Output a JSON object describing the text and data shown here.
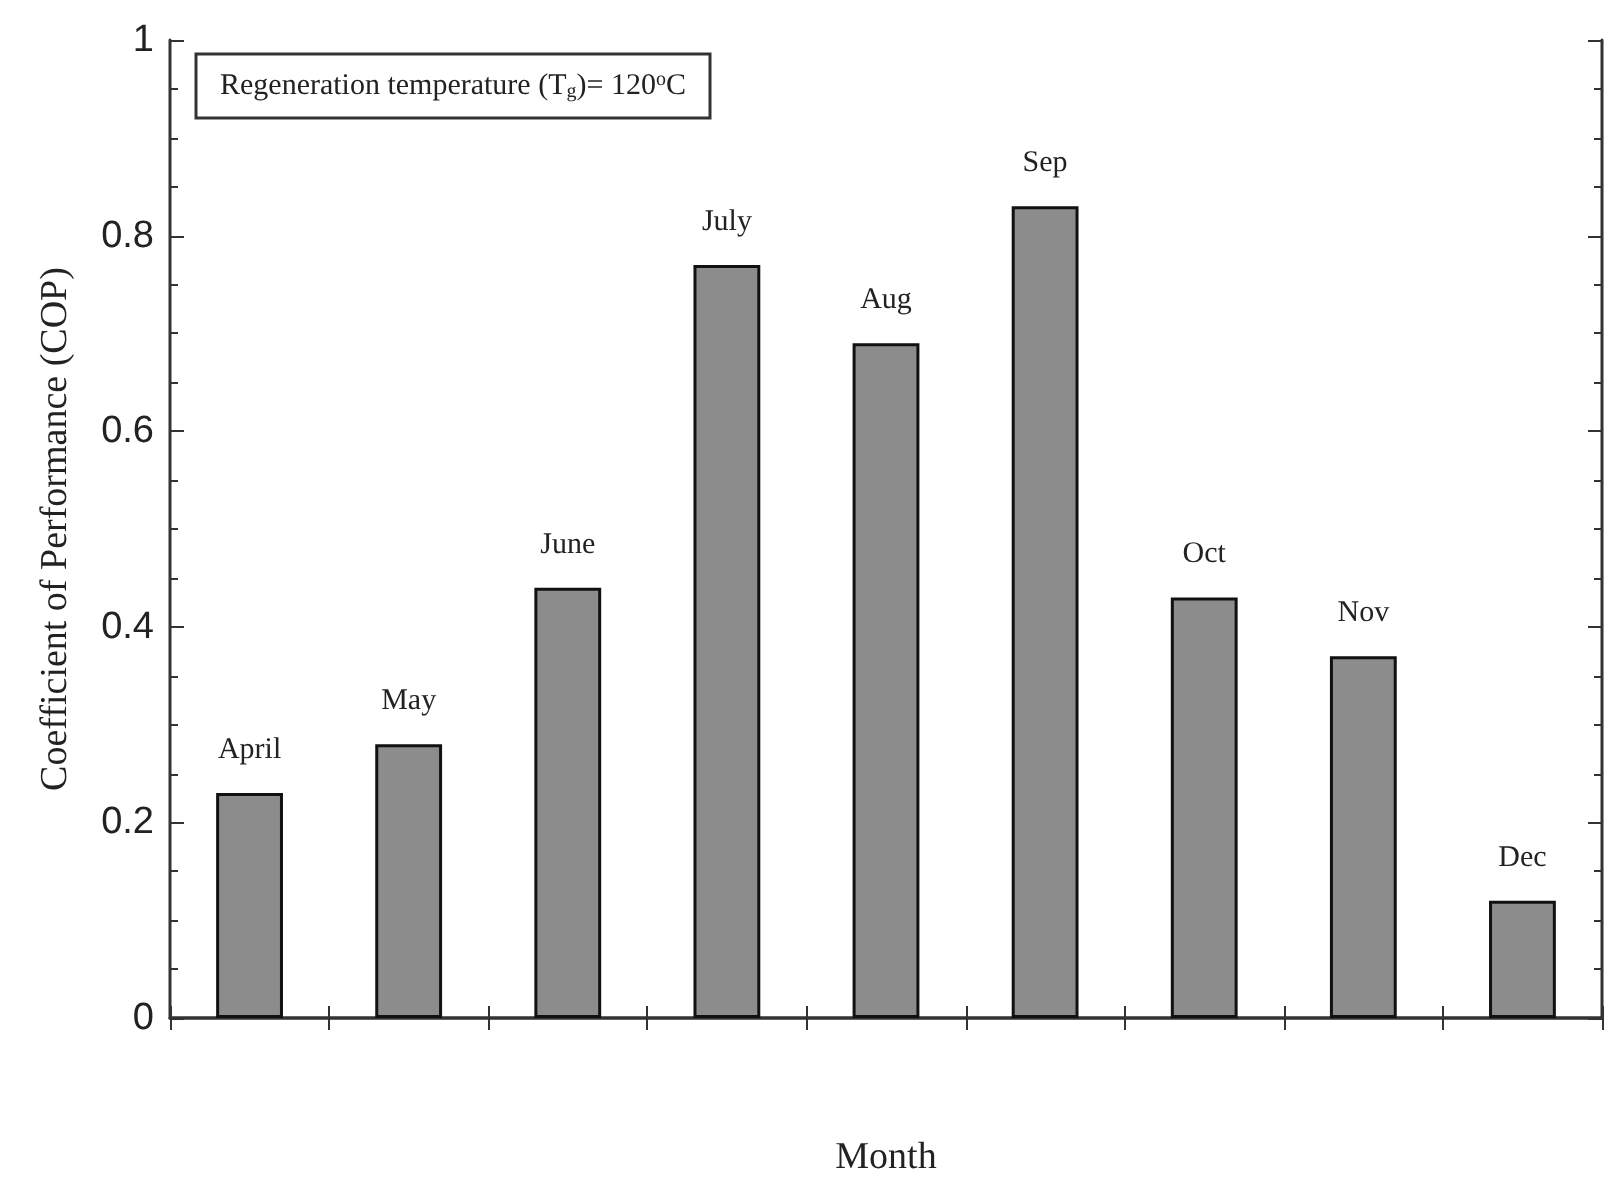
{
  "chart_data": {
    "type": "bar",
    "xlabel": "Month",
    "ylabel": "Coefficient of Performance (COP)",
    "annotations": [
      "Regeneration temperature (T$_{g}$)= 120$^{o}$C"
    ],
    "categories": [
      "April",
      "May",
      "June",
      "July",
      "Aug",
      "Sep",
      "Oct",
      "Nov",
      "Dec"
    ],
    "values": [
      0.23,
      0.28,
      0.44,
      0.77,
      0.69,
      0.83,
      0.43,
      0.37,
      0.12
    ],
    "color": "#8c8c8c",
    "ylim": [
      0,
      1
    ],
    "yticks": [
      0,
      0.2,
      0.4,
      0.6,
      0.8,
      1
    ],
    "tick_labels": "y"
  }
}
